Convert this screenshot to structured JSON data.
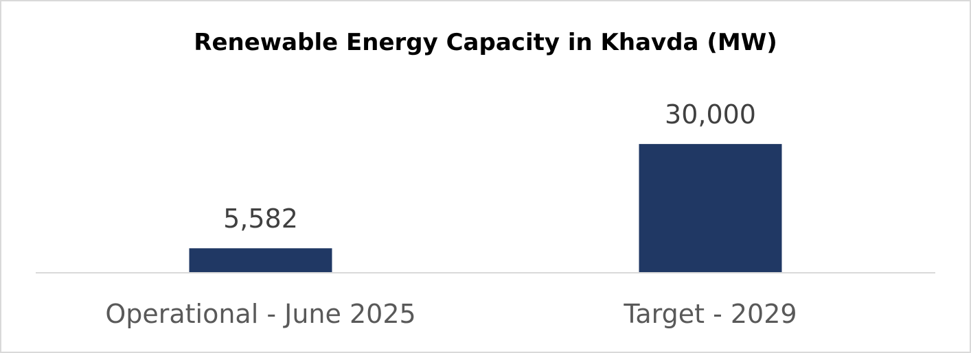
{
  "chart_data": {
    "type": "bar",
    "title": "Renewable Energy Capacity in Khavda (MW)",
    "categories": [
      "Operational - June 2025",
      "Target - 2029"
    ],
    "values": [
      5582,
      30000
    ],
    "data_labels": [
      "5,582",
      "30,000"
    ],
    "xlabel": "",
    "ylabel": "",
    "ylim": [
      0,
      35000
    ],
    "grid": false,
    "legend": "none",
    "bar_color": "#203864",
    "axis_color": "#d9d9d9"
  }
}
